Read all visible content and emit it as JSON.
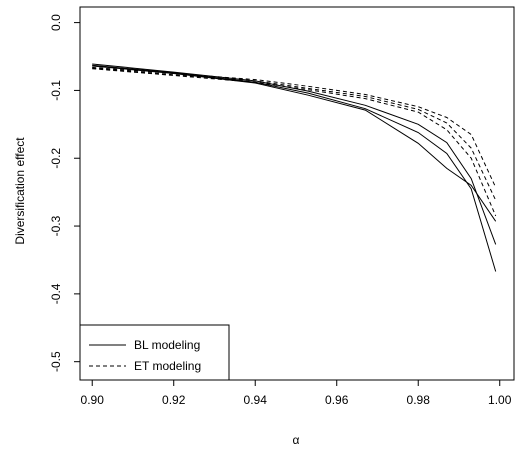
{
  "chart_data": {
    "type": "line",
    "xlabel": "α",
    "ylabel": "Diversification effect",
    "xlim": [
      0.9,
      1.0
    ],
    "ylim": [
      -0.5,
      0.0
    ],
    "xticks": [
      "0.90",
      "0.92",
      "0.94",
      "0.96",
      "0.98",
      "1.00"
    ],
    "yticks": [
      "0.0",
      "-0.1",
      "-0.2",
      "-0.3",
      "-0.4",
      "-0.5"
    ],
    "legend": {
      "position": "bottom-left",
      "entries": [
        {
          "label": "BL modeling",
          "style": "solid"
        },
        {
          "label": "ET modeling",
          "style": "dashed"
        }
      ]
    },
    "series": [
      {
        "group": "BL modeling",
        "style": "solid",
        "x": [
          0.9,
          0.92,
          0.94,
          0.953,
          0.967,
          0.98,
          0.987,
          0.993,
          0.999
        ],
        "y": [
          -0.061,
          -0.073,
          -0.086,
          -0.101,
          -0.122,
          -0.15,
          -0.177,
          -0.23,
          -0.327
        ]
      },
      {
        "group": "BL modeling",
        "style": "solid",
        "x": [
          0.9,
          0.92,
          0.94,
          0.953,
          0.967,
          0.98,
          0.987,
          0.993,
          0.999
        ],
        "y": [
          -0.063,
          -0.074,
          -0.088,
          -0.104,
          -0.127,
          -0.162,
          -0.193,
          -0.245,
          -0.367
        ]
      },
      {
        "group": "BL modeling",
        "style": "solid",
        "x": [
          0.9,
          0.92,
          0.94,
          0.953,
          0.967,
          0.98,
          0.987,
          0.993,
          0.999
        ],
        "y": [
          -0.064,
          -0.075,
          -0.089,
          -0.107,
          -0.129,
          -0.178,
          -0.215,
          -0.24,
          -0.293
        ]
      },
      {
        "group": "ET modeling",
        "style": "dashed",
        "x": [
          0.9,
          0.92,
          0.94,
          0.953,
          0.967,
          0.98,
          0.987,
          0.993,
          0.999
        ],
        "y": [
          -0.066,
          -0.075,
          -0.084,
          -0.094,
          -0.106,
          -0.124,
          -0.14,
          -0.165,
          -0.243
        ]
      },
      {
        "group": "ET modeling",
        "style": "dashed",
        "x": [
          0.9,
          0.92,
          0.94,
          0.953,
          0.967,
          0.98,
          0.987,
          0.993,
          0.999
        ],
        "y": [
          -0.067,
          -0.077,
          -0.086,
          -0.097,
          -0.109,
          -0.128,
          -0.148,
          -0.185,
          -0.262
        ]
      },
      {
        "group": "ET modeling",
        "style": "dashed",
        "x": [
          0.9,
          0.92,
          0.94,
          0.953,
          0.967,
          0.98,
          0.987,
          0.993,
          0.999
        ],
        "y": [
          -0.068,
          -0.078,
          -0.088,
          -0.099,
          -0.112,
          -0.132,
          -0.158,
          -0.2,
          -0.285
        ]
      }
    ]
  }
}
